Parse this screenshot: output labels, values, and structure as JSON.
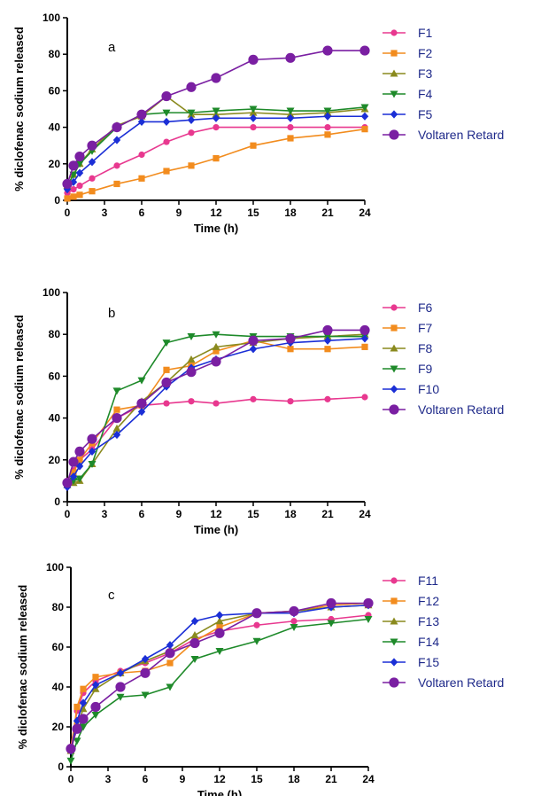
{
  "chart_data": [
    {
      "type": "line",
      "panel_label": "a",
      "xlabel": "Time (h)",
      "ylabel": "% diclofenac sodium released",
      "xlim": [
        0,
        24
      ],
      "ylim": [
        0,
        100
      ],
      "xticks": [
        0,
        3,
        6,
        9,
        12,
        15,
        18,
        21,
        24
      ],
      "yticks": [
        0,
        20,
        40,
        60,
        80,
        100
      ],
      "legend": "right",
      "series": [
        {
          "name": "F1",
          "color": "#e8388f",
          "marker": "circle",
          "x": [
            0,
            0.5,
            1,
            2,
            4,
            6,
            8,
            10,
            12,
            15,
            18,
            21,
            24
          ],
          "y": [
            4,
            6,
            8,
            12,
            19,
            25,
            32,
            37,
            40,
            40,
            40,
            40,
            40
          ]
        },
        {
          "name": "F2",
          "color": "#f28c1e",
          "marker": "square",
          "x": [
            0,
            0.5,
            1,
            2,
            4,
            6,
            8,
            10,
            12,
            15,
            18,
            21,
            24
          ],
          "y": [
            1,
            2,
            3,
            5,
            9,
            12,
            16,
            19,
            23,
            30,
            34,
            36,
            39
          ]
        },
        {
          "name": "F3",
          "color": "#8a8a1e",
          "marker": "triangle-up",
          "x": [
            0,
            0.5,
            1,
            2,
            4,
            6,
            8,
            10,
            12,
            15,
            18,
            21,
            24
          ],
          "y": [
            8,
            14,
            20,
            28,
            41,
            46,
            57,
            47,
            47,
            48,
            47,
            48,
            50
          ]
        },
        {
          "name": "F4",
          "color": "#1e8a2a",
          "marker": "triangle-down",
          "x": [
            0,
            0.5,
            1,
            2,
            4,
            6,
            8,
            10,
            12,
            15,
            18,
            21,
            24
          ],
          "y": [
            8,
            14,
            20,
            27,
            40,
            47,
            48,
            48,
            49,
            50,
            49,
            49,
            51
          ]
        },
        {
          "name": "F5",
          "color": "#1b2fd6",
          "marker": "diamond",
          "x": [
            0,
            0.5,
            1,
            2,
            4,
            6,
            8,
            10,
            12,
            15,
            18,
            21,
            24
          ],
          "y": [
            6,
            10,
            15,
            21,
            33,
            43,
            43,
            44,
            45,
            45,
            45,
            46,
            46
          ]
        },
        {
          "name": "Voltaren Retard",
          "color": "#7a1fa2",
          "marker": "circle-big",
          "x": [
            0,
            0.5,
            1,
            2,
            4,
            6,
            8,
            10,
            12,
            15,
            18,
            21,
            24
          ],
          "y": [
            9,
            19,
            24,
            30,
            40,
            47,
            57,
            62,
            67,
            77,
            78,
            82,
            82
          ]
        }
      ]
    },
    {
      "type": "line",
      "panel_label": "b",
      "xlabel": "Time (h)",
      "ylabel": "% diclofenac sodium released",
      "xlim": [
        0,
        24
      ],
      "ylim": [
        0,
        100
      ],
      "xticks": [
        0,
        3,
        6,
        9,
        12,
        15,
        18,
        21,
        24
      ],
      "yticks": [
        0,
        20,
        40,
        60,
        80,
        100
      ],
      "legend": "right",
      "series": [
        {
          "name": "F6",
          "color": "#e8388f",
          "marker": "circle",
          "x": [
            0,
            0.5,
            1,
            2,
            4,
            6,
            8,
            10,
            12,
            15,
            18,
            21,
            24
          ],
          "y": [
            10,
            15,
            20,
            25,
            40,
            46,
            47,
            48,
            47,
            49,
            48,
            49,
            50
          ]
        },
        {
          "name": "F7",
          "color": "#f28c1e",
          "marker": "square",
          "x": [
            0,
            0.5,
            1,
            2,
            4,
            6,
            8,
            10,
            12,
            15,
            18,
            21,
            24
          ],
          "y": [
            8,
            14,
            20,
            28,
            44,
            46,
            63,
            65,
            72,
            77,
            73,
            73,
            74
          ]
        },
        {
          "name": "F8",
          "color": "#8a8a1e",
          "marker": "triangle-up",
          "x": [
            0,
            0.5,
            1,
            2,
            4,
            6,
            8,
            10,
            12,
            15,
            18,
            21,
            24
          ],
          "y": [
            8,
            9,
            10,
            18,
            35,
            48,
            57,
            68,
            74,
            76,
            78,
            79,
            80
          ]
        },
        {
          "name": "F9",
          "color": "#1e8a2a",
          "marker": "triangle-down",
          "x": [
            0,
            0.5,
            1,
            2,
            4,
            6,
            8,
            10,
            12,
            15,
            18,
            21,
            24
          ],
          "y": [
            8,
            10,
            11,
            18,
            53,
            58,
            76,
            79,
            80,
            79,
            79,
            79,
            79
          ]
        },
        {
          "name": "F10",
          "color": "#1b2fd6",
          "marker": "diamond",
          "x": [
            0,
            0.5,
            1,
            2,
            4,
            6,
            8,
            10,
            12,
            15,
            18,
            21,
            24
          ],
          "y": [
            7,
            12,
            17,
            24,
            32,
            43,
            55,
            64,
            68,
            73,
            76,
            77,
            78
          ]
        },
        {
          "name": "Voltaren Retard",
          "color": "#7a1fa2",
          "marker": "circle-big",
          "x": [
            0,
            0.5,
            1,
            2,
            4,
            6,
            8,
            10,
            12,
            15,
            18,
            21,
            24
          ],
          "y": [
            9,
            19,
            24,
            30,
            40,
            47,
            57,
            62,
            67,
            77,
            78,
            82,
            82
          ]
        }
      ]
    },
    {
      "type": "line",
      "panel_label": "c",
      "xlabel": "Time (h)",
      "ylabel": "% diclofenac sodium released",
      "xlim": [
        0,
        24
      ],
      "ylim": [
        0,
        100
      ],
      "xticks": [
        0,
        3,
        6,
        9,
        12,
        15,
        18,
        21,
        24
      ],
      "yticks": [
        0,
        20,
        40,
        60,
        80,
        100
      ],
      "legend": "right",
      "series": [
        {
          "name": "F11",
          "color": "#e8388f",
          "marker": "circle",
          "x": [
            0,
            0.5,
            1,
            2,
            4,
            6,
            8,
            10,
            12,
            15,
            18,
            21,
            24
          ],
          "y": [
            10,
            28,
            37,
            43,
            48,
            52,
            57,
            64,
            68,
            71,
            73,
            74,
            76
          ]
        },
        {
          "name": "F12",
          "color": "#f28c1e",
          "marker": "square",
          "x": [
            0,
            0.5,
            1,
            2,
            4,
            6,
            8,
            10,
            12,
            15,
            18,
            21,
            24
          ],
          "y": [
            8,
            30,
            39,
            45,
            47,
            48,
            52,
            63,
            70,
            77,
            78,
            81,
            82
          ]
        },
        {
          "name": "F13",
          "color": "#8a8a1e",
          "marker": "triangle-up",
          "x": [
            0,
            0.5,
            1,
            2,
            4,
            6,
            8,
            10,
            12,
            15,
            18,
            21,
            24
          ],
          "y": [
            8,
            20,
            29,
            39,
            47,
            53,
            58,
            66,
            73,
            77,
            78,
            80,
            81
          ]
        },
        {
          "name": "F14",
          "color": "#1e8a2a",
          "marker": "triangle-down",
          "x": [
            0,
            0.5,
            1,
            2,
            4,
            6,
            8,
            10,
            12,
            15,
            18,
            21,
            24
          ],
          "y": [
            3,
            13,
            20,
            26,
            35,
            36,
            40,
            54,
            58,
            63,
            70,
            72,
            74
          ]
        },
        {
          "name": "F15",
          "color": "#1b2fd6",
          "marker": "diamond",
          "x": [
            0,
            0.5,
            1,
            2,
            4,
            6,
            8,
            10,
            12,
            15,
            18,
            21,
            24
          ],
          "y": [
            8,
            23,
            32,
            41,
            47,
            54,
            61,
            73,
            76,
            77,
            77,
            80,
            81
          ]
        },
        {
          "name": "Voltaren Retard",
          "color": "#7a1fa2",
          "marker": "circle-big",
          "x": [
            0,
            0.5,
            1,
            2,
            4,
            6,
            8,
            10,
            12,
            15,
            18,
            21,
            24
          ],
          "y": [
            9,
            19,
            24,
            30,
            40,
            47,
            57,
            62,
            67,
            77,
            78,
            82,
            82
          ]
        }
      ]
    }
  ]
}
